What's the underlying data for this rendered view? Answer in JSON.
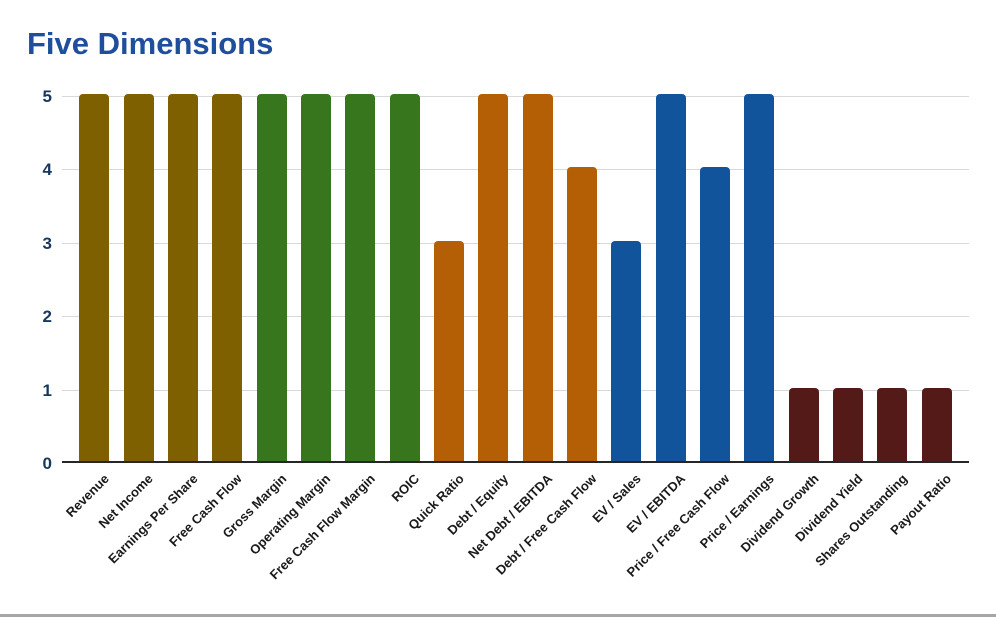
{
  "title": "Five Dimensions",
  "colors": {
    "title_text": "#1f4e9c",
    "y_tick_text": "#17375e",
    "x_tick_text": "#1a1a1a",
    "gridline": "#d9d9d9",
    "axis_line": "#262626",
    "bottom_divider": "#a6a6a6",
    "group_gold": "#7f6000",
    "group_green": "#38761d",
    "group_orange": "#b45f06",
    "group_blue": "#11549c",
    "group_maroon": "#541a17"
  },
  "chart_data": {
    "type": "bar",
    "title": "Five Dimensions",
    "xlabel": "",
    "ylabel": "",
    "ylim": [
      0,
      5
    ],
    "yticks": [
      "0",
      "1",
      "2",
      "3",
      "4",
      "5"
    ],
    "grid": true,
    "legend": "none",
    "categories": [
      "Revenue",
      "Net Income",
      "Earnings Per Share",
      "Free Cash Flow",
      "Gross Margin",
      "Operating Margin",
      "Free Cash Flow Margin",
      "ROIC",
      "Quick Ratio",
      "Debt / Equity",
      "Net Debt / EBITDA",
      "Debt / Free Cash Flow",
      "EV / Sales",
      "EV / EBITDA",
      "Price / Free Cash Flow",
      "Price / Earnings",
      "Dividend Growth",
      "Dividend Yield",
      "Shares Outstanding",
      "Payout Ratio"
    ],
    "values": [
      5,
      5,
      5,
      5,
      5,
      5,
      5,
      5,
      3,
      5,
      5,
      4,
      3,
      5,
      4,
      5,
      1,
      1,
      1,
      1
    ],
    "bar_colors": [
      "#7f6000",
      "#7f6000",
      "#7f6000",
      "#7f6000",
      "#38761d",
      "#38761d",
      "#38761d",
      "#38761d",
      "#b45f06",
      "#b45f06",
      "#b45f06",
      "#b45f06",
      "#11549c",
      "#11549c",
      "#11549c",
      "#11549c",
      "#541a17",
      "#541a17",
      "#541a17",
      "#541a17"
    ]
  }
}
